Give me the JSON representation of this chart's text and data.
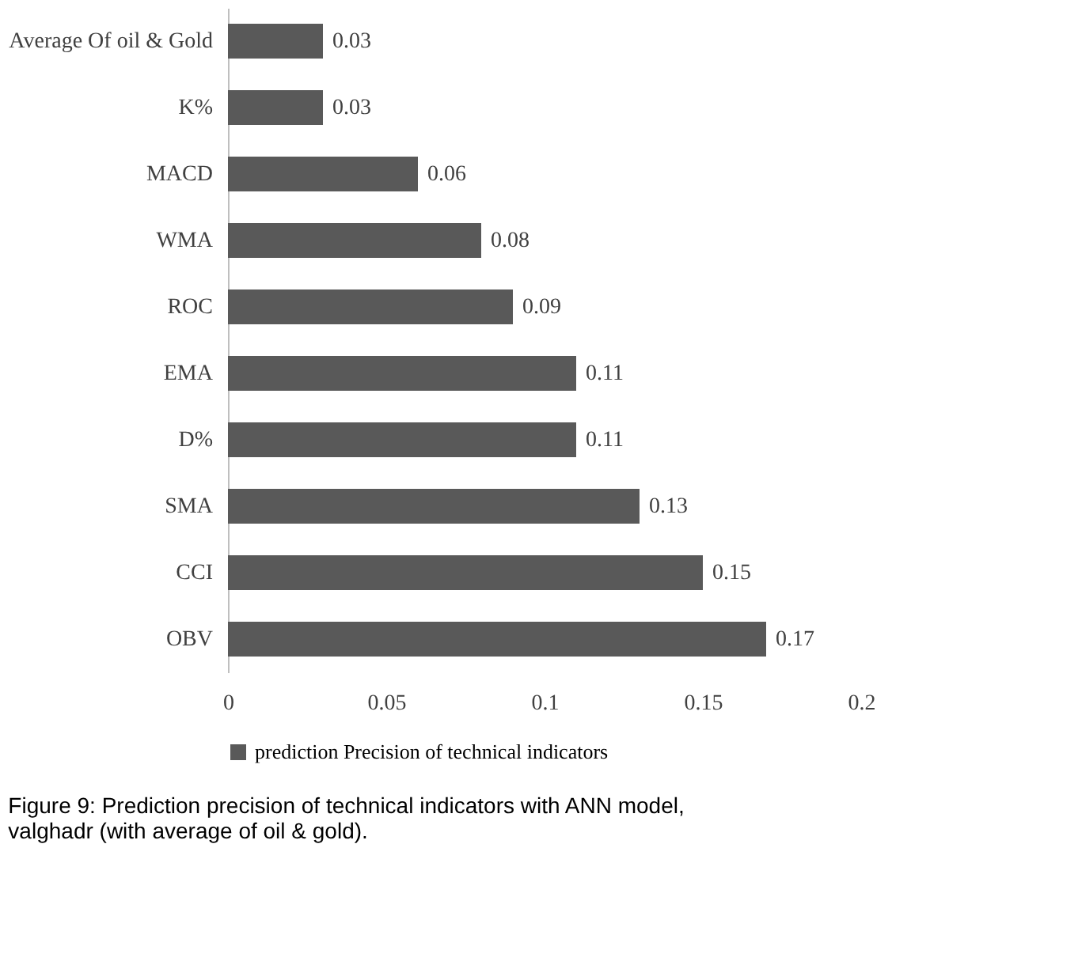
{
  "chart_data": {
    "type": "bar",
    "orientation": "horizontal",
    "categories": [
      "Average Of oil & Gold",
      "K%",
      "MACD",
      "WMA",
      "ROC",
      "EMA",
      "D%",
      "SMA",
      "CCI",
      "OBV"
    ],
    "series": [
      {
        "name": "prediction Precision of technical indicators",
        "color": "#595959",
        "values": [
          0.03,
          0.03,
          0.06,
          0.08,
          0.09,
          0.11,
          0.11,
          0.13,
          0.15,
          0.17
        ]
      }
    ],
    "xlim": [
      0,
      0.2
    ],
    "xticks": [
      0,
      0.05,
      0.1,
      0.15,
      0.2
    ],
    "data_labels": true,
    "grid": false,
    "legend": "bottom",
    "annotations": [
      "Figure 9: Prediction precision of technical indicators with ANN model, valghadr (with average of oil & gold)."
    ]
  }
}
